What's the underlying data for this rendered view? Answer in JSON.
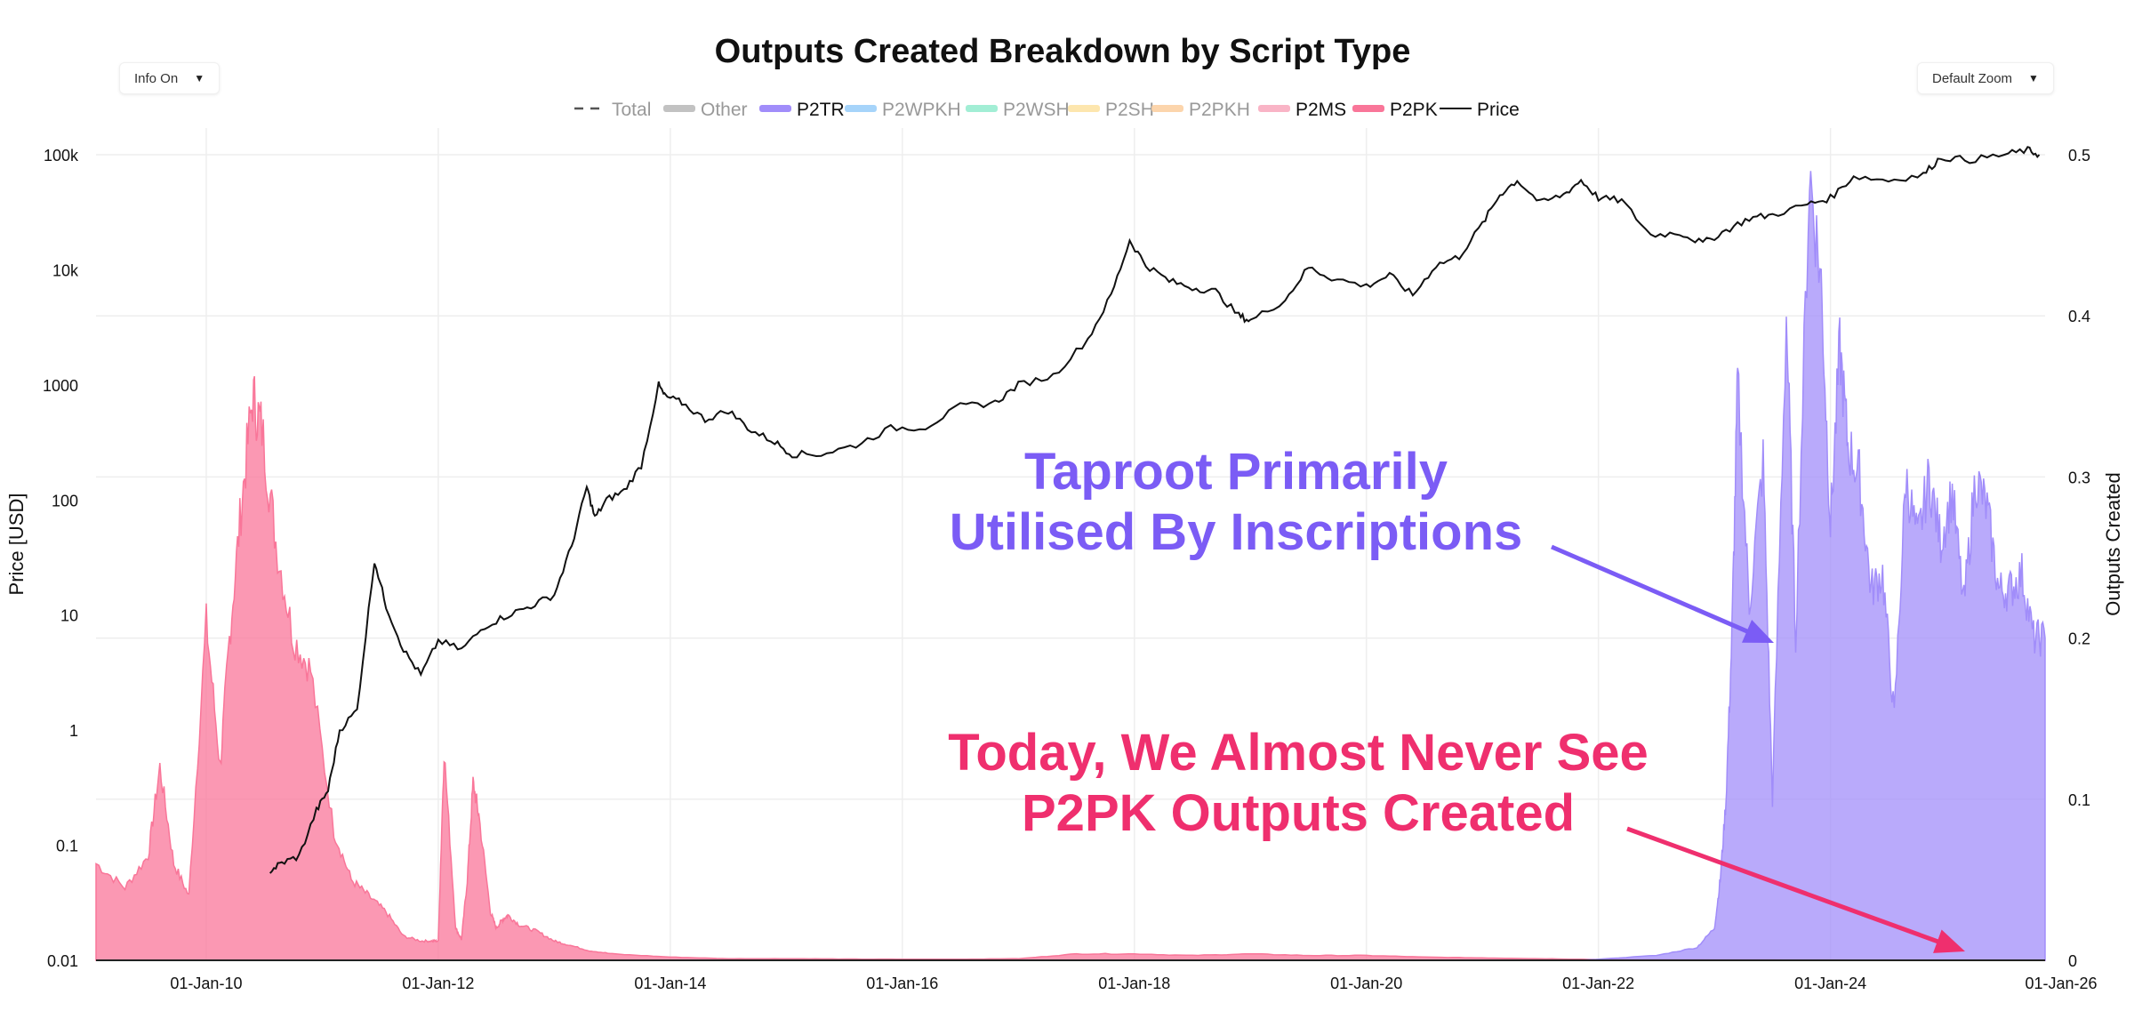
{
  "controls": {
    "info_label": "Info On",
    "zoom_label": "Default Zoom",
    "dropdown_icon": "triangle-down-icon"
  },
  "colors": {
    "p2tr": "#a18dfa",
    "p2pk": "#f97699",
    "price": "#111111",
    "annotation_taproot": "#7b5cf5",
    "annotation_p2pk": "#ef2f6e",
    "legend_p2wpkh": "#9ccffa",
    "legend_p2wsh": "#98ecd0",
    "legend_p2sh": "#fde3a5",
    "legend_p2pkh": "#fcd0a3",
    "legend_p2ms": "#f9b4c6",
    "legend_other": "#bbbbbb",
    "grid": "#eeeeee"
  },
  "chart_data": {
    "type": "area",
    "title": "Outputs Created Breakdown by Script Type",
    "ylabel_left": "Price [USD]",
    "ylabel_right": "Outputs Created",
    "y_left_scale": "log",
    "y_left_range": [
      0.01,
      100000
    ],
    "y_left_ticks": [
      "0.01",
      "0.1",
      "1",
      "10",
      "100",
      "1000",
      "10k",
      "100k"
    ],
    "y_right_range": [
      0,
      0.5
    ],
    "y_right_ticks": [
      "0",
      "0.1",
      "0.2",
      "0.3",
      "0.4",
      "0.5"
    ],
    "x_range": [
      2009.05,
      2025.85
    ],
    "x_ticks": [
      "01-Jan-10",
      "01-Jan-12",
      "01-Jan-14",
      "01-Jan-16",
      "01-Jan-18",
      "01-Jan-20",
      "01-Jan-22",
      "01-Jan-24",
      "01-Jan-26"
    ],
    "legend": [
      {
        "name": "Total",
        "style": "dashed",
        "active": false
      },
      {
        "name": "Other",
        "style": "swatch-grey",
        "active": false
      },
      {
        "name": "P2TR",
        "style": "swatch",
        "active": true
      },
      {
        "name": "P2WPKH",
        "style": "swatch",
        "active": false
      },
      {
        "name": "P2WSH",
        "style": "swatch",
        "active": false
      },
      {
        "name": "P2SH",
        "style": "swatch",
        "active": false
      },
      {
        "name": "P2PKH",
        "style": "swatch",
        "active": false
      },
      {
        "name": "P2MS",
        "style": "swatch",
        "active": true
      },
      {
        "name": "P2PK",
        "style": "swatch",
        "active": true
      },
      {
        "name": "Price",
        "style": "line",
        "active": true
      }
    ],
    "annotations": [
      {
        "lines": [
          "Taproot Primarily",
          "Utilised By Inscriptions"
        ],
        "color": "taproot",
        "points_to": "P2TR peak 2023"
      },
      {
        "lines": [
          "Today, We Almost Never See",
          "P2PK Outputs Created"
        ],
        "color": "p2pk",
        "points_to": "P2PK near zero 2025"
      }
    ],
    "series": [
      {
        "name": "Price",
        "axis": "left",
        "x": [
          2010.55,
          2010.65,
          2010.8,
          2010.95,
          2011.05,
          2011.15,
          2011.3,
          2011.45,
          2011.55,
          2011.7,
          2011.85,
          2012.0,
          2012.2,
          2012.4,
          2012.6,
          2012.8,
          2013.0,
          2013.15,
          2013.28,
          2013.35,
          2013.45,
          2013.6,
          2013.75,
          2013.9,
          2013.95,
          2014.1,
          2014.3,
          2014.5,
          2014.7,
          2014.9,
          2015.05,
          2015.3,
          2015.6,
          2015.9,
          2016.2,
          2016.5,
          2016.8,
          2017.0,
          2017.3,
          2017.6,
          2017.8,
          2017.96,
          2018.1,
          2018.3,
          2018.5,
          2018.7,
          2018.9,
          2019.0,
          2019.3,
          2019.5,
          2019.7,
          2020.0,
          2020.2,
          2020.4,
          2020.6,
          2020.8,
          2021.0,
          2021.15,
          2021.3,
          2021.5,
          2021.7,
          2021.85,
          2022.0,
          2022.2,
          2022.45,
          2022.7,
          2022.9,
          2023.1,
          2023.3,
          2023.5,
          2023.8,
          2024.0,
          2024.2,
          2024.5,
          2024.8,
          2024.95,
          2025.2,
          2025.5,
          2025.7,
          2025.8
        ],
        "y": [
          0.06,
          0.07,
          0.08,
          0.2,
          0.3,
          1.0,
          1.5,
          30,
          12,
          5,
          3,
          6,
          5,
          8,
          10,
          12,
          15,
          40,
          130,
          70,
          100,
          120,
          200,
          1000,
          800,
          700,
          500,
          600,
          400,
          320,
          250,
          250,
          300,
          420,
          430,
          650,
          700,
          1000,
          1200,
          2500,
          6000,
          18000,
          11000,
          8000,
          7000,
          6500,
          4000,
          3600,
          5500,
          10500,
          8500,
          7200,
          9000,
          6000,
          11000,
          13000,
          25000,
          45000,
          60000,
          38000,
          45000,
          60000,
          42000,
          40000,
          20000,
          21000,
          17000,
          22000,
          28000,
          30000,
          37000,
          42000,
          65000,
          60000,
          67000,
          95000,
          90000,
          100000,
          110000,
          100000
        ]
      },
      {
        "name": "P2PK",
        "axis": "right",
        "x": [
          2009.05,
          2009.3,
          2009.5,
          2009.6,
          2009.72,
          2009.85,
          2010.0,
          2010.12,
          2010.2,
          2010.3,
          2010.4,
          2010.48,
          2010.6,
          2010.75,
          2010.9,
          2011.1,
          2011.25,
          2011.4,
          2011.55,
          2011.7,
          2011.85,
          2011.95,
          2012.0,
          2012.05,
          2012.15,
          2012.2,
          2012.25,
          2012.3,
          2012.35,
          2012.45,
          2012.5,
          2012.55,
          2012.6,
          2012.7,
          2012.85,
          2013.0,
          2013.1,
          2013.3,
          2013.5,
          2014.0,
          2014.5,
          2015.0,
          2015.5,
          2016.0,
          2016.5,
          2017.0,
          2017.5,
          2018.0,
          2018.5,
          2019.0,
          2019.5,
          2020.0,
          2020.5,
          2021.0,
          2021.5,
          2022.0,
          2023.0,
          2024.0,
          2025.0,
          2025.85
        ],
        "y": [
          0.06,
          0.045,
          0.065,
          0.12,
          0.06,
          0.04,
          0.21,
          0.12,
          0.2,
          0.28,
          0.35,
          0.33,
          0.26,
          0.2,
          0.18,
          0.08,
          0.05,
          0.04,
          0.03,
          0.015,
          0.012,
          0.012,
          0.012,
          0.13,
          0.02,
          0.013,
          0.05,
          0.11,
          0.09,
          0.03,
          0.02,
          0.025,
          0.028,
          0.022,
          0.018,
          0.012,
          0.01,
          0.006,
          0.004,
          0.002,
          0.001,
          0.001,
          0.0008,
          0.0007,
          0.0007,
          0.001,
          0.004,
          0.004,
          0.003,
          0.004,
          0.003,
          0.003,
          0.002,
          0.0015,
          0.001,
          0.0005,
          0.0003,
          0.0002,
          0.0001,
          0.0001
        ]
      },
      {
        "name": "P2TR",
        "axis": "right",
        "x": [
          2021.85,
          2022.5,
          2022.85,
          2023.0,
          2023.05,
          2023.1,
          2023.15,
          2023.2,
          2023.3,
          2023.42,
          2023.5,
          2023.62,
          2023.7,
          2023.82,
          2023.92,
          2024.0,
          2024.08,
          2024.15,
          2024.25,
          2024.35,
          2024.45,
          2024.55,
          2024.65,
          2024.75,
          2024.85,
          2024.95,
          2025.05,
          2025.15,
          2025.25,
          2025.35,
          2025.45,
          2025.55,
          2025.65,
          2025.75,
          2025.85
        ],
        "y": [
          0,
          0.003,
          0.008,
          0.02,
          0.05,
          0.1,
          0.2,
          0.36,
          0.22,
          0.31,
          0.1,
          0.4,
          0.2,
          0.49,
          0.42,
          0.27,
          0.38,
          0.32,
          0.3,
          0.23,
          0.24,
          0.15,
          0.3,
          0.26,
          0.3,
          0.26,
          0.29,
          0.22,
          0.3,
          0.28,
          0.23,
          0.23,
          0.24,
          0.2,
          0.2
        ]
      }
    ]
  }
}
